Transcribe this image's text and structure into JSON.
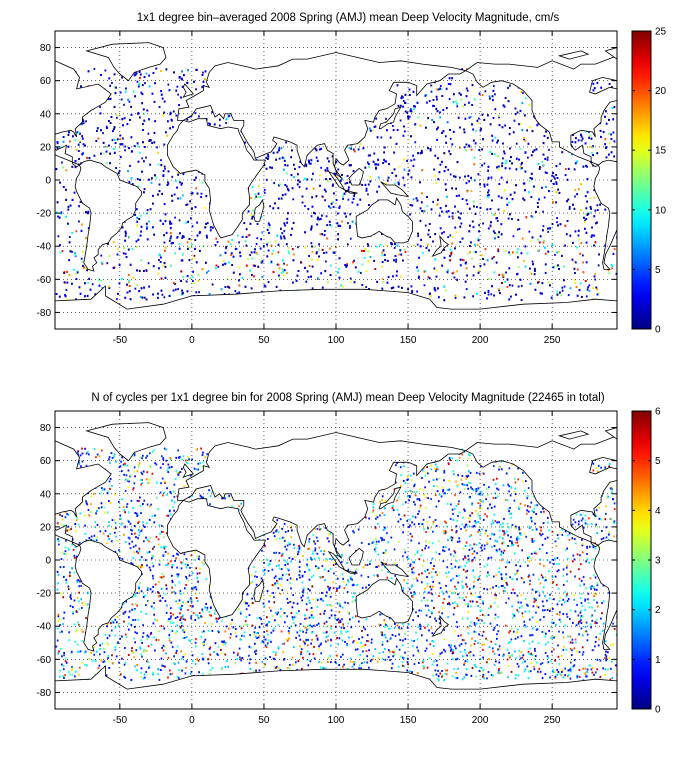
{
  "chart_data": [
    {
      "type": "heatmap",
      "title": "1x1 degree bin–averaged 2008 Spring (AMJ) mean Deep Velocity Magnitude, cm/s",
      "x_ticks": [
        -50,
        0,
        50,
        100,
        150,
        200,
        250
      ],
      "y_ticks": [
        80,
        60,
        40,
        20,
        0,
        -20,
        -40,
        -60,
        -80
      ],
      "xlim": [
        -95,
        295
      ],
      "ylim": [
        -90,
        90
      ],
      "grid": true,
      "colorbar": {
        "min": 0,
        "max": 25,
        "ticks": [
          0,
          5,
          10,
          15,
          20,
          25
        ],
        "colormap": "jet"
      },
      "colors": {
        "low": "#00008f",
        "mid": "#7fff7f",
        "high": "#800000"
      }
    },
    {
      "type": "heatmap",
      "title": "N of cycles per 1x1 degree bin for 2008 Spring (AMJ) mean Deep Velocity Magnitude (22465 in total)",
      "x_ticks": [
        -50,
        0,
        50,
        100,
        150,
        200,
        250
      ],
      "y_ticks": [
        80,
        60,
        40,
        20,
        0,
        -20,
        -40,
        -60,
        -80
      ],
      "xlim": [
        -95,
        295
      ],
      "ylim": [
        -90,
        90
      ],
      "grid": true,
      "colorbar": {
        "min": 0,
        "max": 6,
        "ticks": [
          0,
          1,
          2,
          3,
          4,
          5,
          6
        ],
        "colormap": "jet"
      },
      "colors": {
        "low": "#00008f",
        "mid": "#7fff7f",
        "high": "#800000"
      }
    }
  ]
}
